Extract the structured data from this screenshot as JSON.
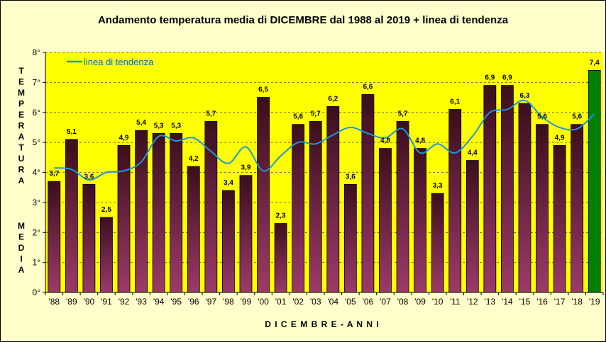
{
  "chart_data": {
    "type": "bar",
    "title": "Andamento temperatura media di DICEMBRE dal 1988 al 2019 + linea di tendenza",
    "xlabel": "D I C E M B R E  -  A N N I",
    "ylabel": "T E M P E R A T U R A   M E D I A",
    "ylabel_top": [
      "T",
      "E",
      "M",
      "P",
      "E",
      "R",
      "A",
      "T",
      "U",
      "R",
      "A"
    ],
    "ylabel_bottom": [
      "M",
      "E",
      "D",
      "I",
      "A"
    ],
    "ylim": [
      0,
      8
    ],
    "yticks": [
      "0°",
      "1°",
      "2°",
      "3°",
      "4°",
      "5°",
      "6°",
      "7°",
      "8°"
    ],
    "categories": [
      "'88",
      "'89",
      "'90",
      "'91",
      "'92",
      "'93",
      "'94",
      "'95",
      "'96",
      "'97",
      "'98",
      "'99",
      "'00",
      "'01",
      "'02",
      "'03",
      "'04",
      "'05",
      "'06",
      "'07",
      "'08",
      "'09",
      "'10",
      "'11",
      "'12",
      "'13",
      "'14",
      "'15",
      "'16",
      "'17",
      "'18",
      "'19"
    ],
    "values": [
      3.7,
      5.1,
      3.6,
      2.5,
      4.9,
      5.4,
      5.3,
      5.3,
      4.2,
      5.7,
      3.4,
      3.9,
      6.5,
      2.3,
      5.6,
      5.7,
      6.2,
      3.6,
      6.6,
      4.8,
      5.7,
      4.8,
      3.3,
      6.1,
      4.4,
      6.9,
      6.9,
      6.3,
      5.6,
      4.9,
      5.6,
      7.4
    ],
    "value_labels": [
      "3,7",
      "5,1",
      "3,6",
      "2,5",
      "4,9",
      "5,4",
      "5,3",
      "5,3",
      "4,2",
      "5,7",
      "3,4",
      "3,9",
      "6,5",
      "2,3",
      "5,6",
      "5,7",
      "6,2",
      "3,6",
      "6,6",
      "4,8",
      "5,7",
      "4,8",
      "3,3",
      "6,1",
      "4,4",
      "6,9",
      "6,9",
      "6,3",
      "5,6",
      "4,9",
      "5,6",
      "7,4"
    ],
    "highlight_index": 31,
    "trend": {
      "name": "linea di tendenza",
      "values": [
        4.15,
        4.1,
        3.75,
        4.0,
        4.05,
        4.35,
        5.2,
        5.05,
        5.15,
        4.7,
        4.3,
        4.85,
        4.05,
        4.55,
        5.0,
        4.95,
        5.25,
        5.5,
        5.3,
        5.15,
        5.45,
        4.65,
        4.95,
        4.65,
        5.2,
        6.0,
        6.1,
        6.4,
        5.85,
        5.5,
        5.45,
        5.95
      ]
    },
    "colors": {
      "plot_bg": "#ffff00",
      "page_bg": "#ffffcc",
      "bar_top": "#3c0e1c",
      "bar_bottom": "#9b3a6a",
      "bar_highlight": "#008000",
      "trend": "#1e96dc"
    },
    "grid": "dashed"
  }
}
